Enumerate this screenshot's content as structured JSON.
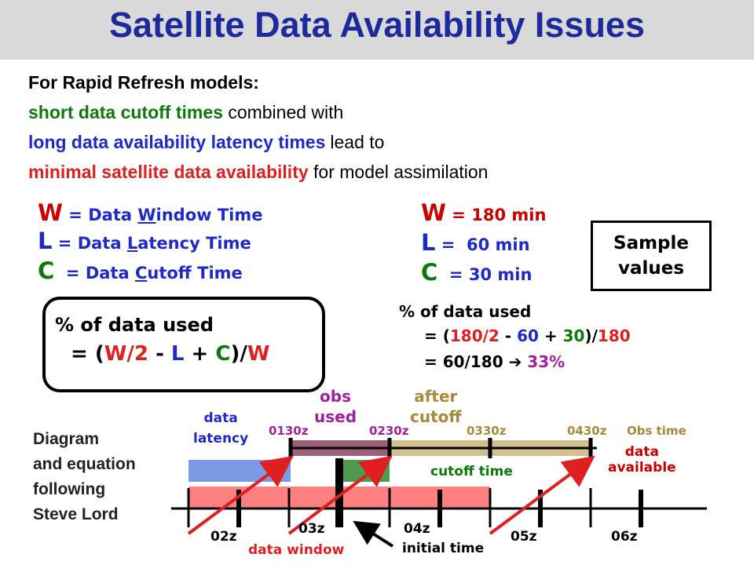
{
  "title": "Satellite Data Availability Issues",
  "intro": {
    "line1": "For Rapid Refresh models:",
    "line2_colored": "short data cutoff times",
    "line2_plain": "combined with",
    "line3_colored": "long data availability latency",
    "line3_colored2": "times",
    "line3_plain": "lead to",
    "line4_colored": "minimal satellite data availability",
    "line4_plain": "for model assimilation"
  },
  "definitions": {
    "w_letter": "W",
    "w_rest_a": " = Data ",
    "w_under": "W",
    "w_rest_b": "indow Time",
    "l_letter": "L",
    "l_rest_a": " = Data ",
    "l_under": "L",
    "l_rest_b": "atency Time",
    "c_letter": "C",
    "c_rest_a": "  = Data ",
    "c_under": "C",
    "c_rest_b": "utoff Time"
  },
  "sample_values": {
    "w_letter": "W",
    "w_value": " = 180 min",
    "l_letter": "L",
    "l_value": " =  60 min",
    "c_letter": "C",
    "c_value": "  = 30 min",
    "box_line1": "Sample",
    "box_line2": "values"
  },
  "formula": {
    "line1": "% of data used",
    "eq_open": "= (",
    "w1": "W",
    "div2": "/2",
    "minus": " - ",
    "l": "L",
    "plus": " + ",
    "c": "C",
    "close": ")/",
    "w2": "W"
  },
  "calc": {
    "line1": "% of data used",
    "eq_a": "= (",
    "n180a": "180",
    "slash2": "/2",
    "minus": " - ",
    "n60": "60",
    "plus": " + ",
    "n30": "30",
    "close": ")/",
    "n180b": "180",
    "line3_a": "= 60/180 ",
    "arrow": "➔",
    "pct": " 33%"
  },
  "diagram": {
    "credit_line1": "Diagram",
    "credit_line2": "and equation",
    "credit_line3": "following",
    "credit_line4": "Steve Lord",
    "data_latency_1": "data",
    "data_latency_2": "latency",
    "obs_used_1": "obs",
    "obs_used_2": "used",
    "after_cutoff_1": "after",
    "after_cutoff_2": "cutoff",
    "t0130": "0130z",
    "t0230": "0230z",
    "t0330": "0330z",
    "t0430": "0430z",
    "obs_time": "Obs time",
    "data_available_1": "data",
    "data_available_2": "available",
    "cutoff_time": "cutoff time",
    "t02": "02z",
    "t03": "03z",
    "t04": "04z",
    "t05": "05z",
    "t06": "06z",
    "data_window": "data window",
    "initial_time": "initial time"
  },
  "colors": {
    "title": "#1c2a9c",
    "green": "#0b7a0b",
    "blue": "#1f28c8",
    "red": "#e02020",
    "purple": "#a020a0",
    "tan": "#a88a3c",
    "pink_bar": "#ff8080",
    "blue_bar": "#7a9ae6",
    "green_bar": "#4e9a4e",
    "mauve_bar": "#9c6078"
  }
}
